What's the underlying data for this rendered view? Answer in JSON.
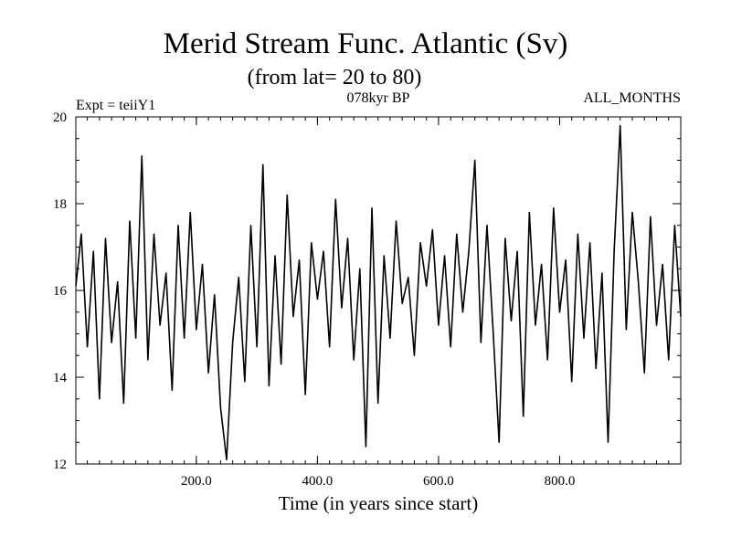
{
  "chart_data": {
    "type": "line",
    "title": "Merid Stream Func. Atlantic (Sv)",
    "subtitle": "(from lat= 20 to 80)",
    "annotations": {
      "left": "Expt = teiiY1",
      "center": "078kyr BP",
      "right": "ALL_MONTHS"
    },
    "xlabel": "Time (in years since start)",
    "ylabel": "",
    "xlim": [
      1,
      1000
    ],
    "ylim": [
      12,
      20
    ],
    "x_ticks": [
      200,
      400,
      600,
      800
    ],
    "x_tick_labels": [
      "200.0",
      "400.0",
      "600.0",
      "800.0"
    ],
    "y_ticks": [
      12,
      14,
      16,
      18,
      20
    ],
    "y_tick_labels": [
      "12",
      "14",
      "16",
      "18",
      "20"
    ],
    "x_minor_step": 20,
    "y_minor_step": 0.5,
    "grid": false,
    "line_color": "#000000",
    "series": [
      {
        "x": [
          1,
          10,
          20,
          30,
          40,
          50,
          60,
          70,
          80,
          90,
          100,
          110,
          120,
          130,
          140,
          150,
          160,
          170,
          180,
          190,
          200,
          210,
          220,
          230,
          240,
          250,
          260,
          270,
          280,
          290,
          300,
          310,
          320,
          330,
          340,
          350,
          360,
          370,
          380,
          390,
          400,
          410,
          420,
          430,
          440,
          450,
          460,
          470,
          480,
          490,
          500,
          510,
          520,
          530,
          540,
          550,
          560,
          570,
          580,
          590,
          600,
          610,
          620,
          630,
          640,
          650,
          660,
          670,
          680,
          690,
          700,
          710,
          720,
          730,
          740,
          750,
          760,
          770,
          780,
          790,
          800,
          810,
          820,
          830,
          840,
          850,
          860,
          870,
          880,
          890,
          900,
          910,
          920,
          930,
          940,
          950,
          960,
          970,
          980,
          990,
          1000
        ],
        "values": [
          16.1,
          17.3,
          14.7,
          16.9,
          13.5,
          17.2,
          14.8,
          16.2,
          13.4,
          17.6,
          14.9,
          19.1,
          14.4,
          17.3,
          15.2,
          16.4,
          13.7,
          17.5,
          14.9,
          17.8,
          15.1,
          16.6,
          14.1,
          15.9,
          13.3,
          12.1,
          14.8,
          16.3,
          13.9,
          17.5,
          14.7,
          18.9,
          13.8,
          16.8,
          14.3,
          18.2,
          15.4,
          16.7,
          13.6,
          17.1,
          15.8,
          16.9,
          14.7,
          18.1,
          15.6,
          17.2,
          14.4,
          16.5,
          12.4,
          17.9,
          13.4,
          16.8,
          14.9,
          17.6,
          15.7,
          16.3,
          14.5,
          17.1,
          16.1,
          17.4,
          15.2,
          16.8,
          14.7,
          17.3,
          15.5,
          16.9,
          19.0,
          14.8,
          17.5,
          15.1,
          12.5,
          17.2,
          15.3,
          16.9,
          13.1,
          17.8,
          15.2,
          16.6,
          14.4,
          17.9,
          15.5,
          16.7,
          13.9,
          17.3,
          14.9,
          17.1,
          14.2,
          16.4,
          12.5,
          16.9,
          19.8,
          15.1,
          17.8,
          16.2,
          14.1,
          17.7,
          15.2,
          16.6,
          14.4,
          17.5,
          15.4
        ]
      }
    ]
  }
}
